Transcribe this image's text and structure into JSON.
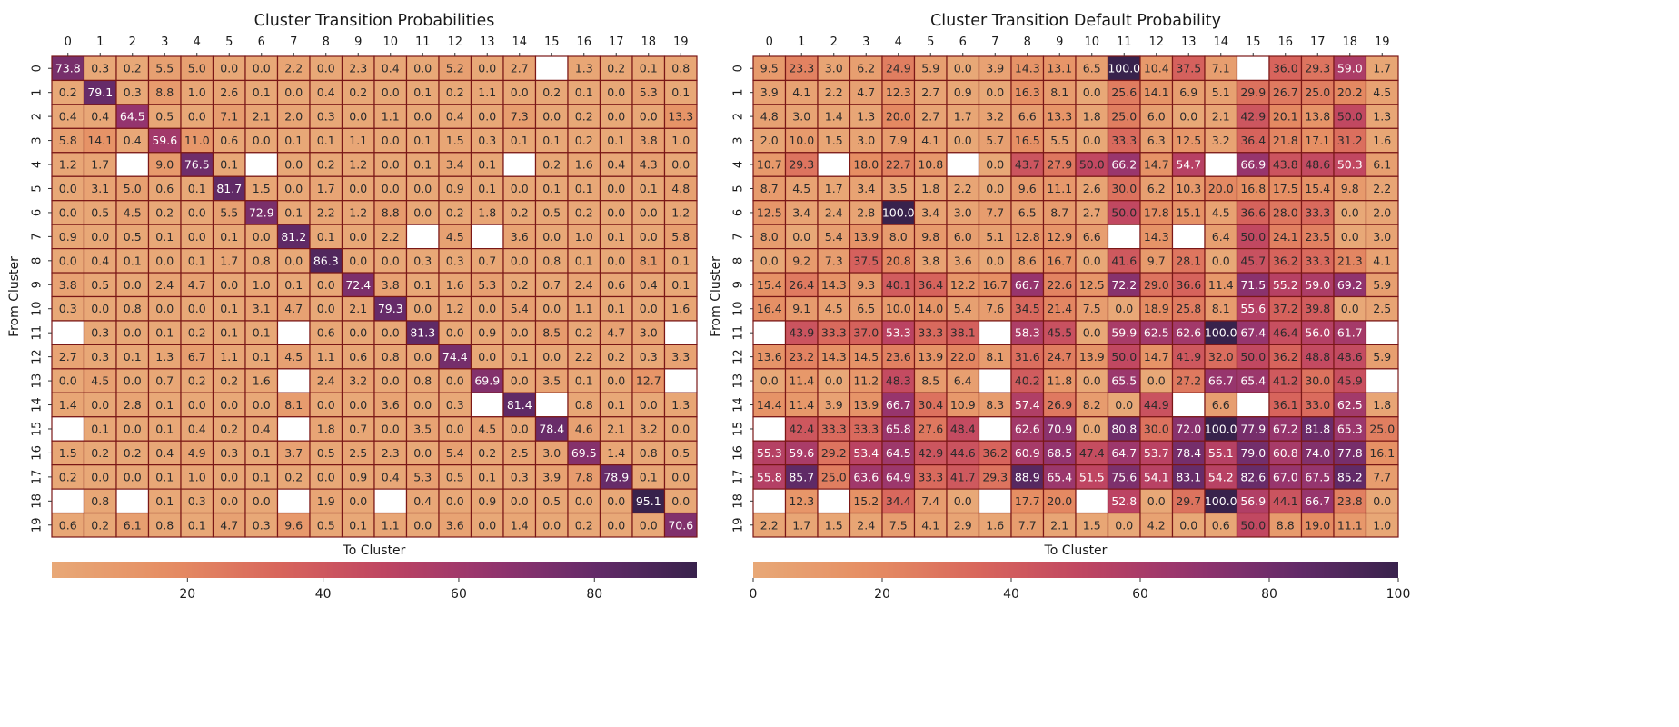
{
  "chart_data": [
    {
      "type": "heatmap",
      "title": "Cluster Transition Probabilities",
      "xlabel": "To Cluster",
      "ylabel": "From Cluster",
      "x_categories": [
        "0",
        "1",
        "2",
        "3",
        "4",
        "5",
        "6",
        "7",
        "8",
        "9",
        "10",
        "11",
        "12",
        "13",
        "14",
        "15",
        "16",
        "17",
        "18",
        "19"
      ],
      "y_categories": [
        "0",
        "1",
        "2",
        "3",
        "4",
        "5",
        "6",
        "7",
        "8",
        "9",
        "10",
        "11",
        "12",
        "13",
        "14",
        "15",
        "16",
        "17",
        "18",
        "19"
      ],
      "colorbar": {
        "range": [
          0.0,
          95.1
        ],
        "ticks": [
          20,
          40,
          60,
          80
        ],
        "orientation": "horizontal"
      },
      "colormap": "flare",
      "grid": true,
      "values": [
        [
          73.8,
          0.3,
          0.2,
          5.5,
          5.0,
          0.0,
          0.0,
          2.2,
          0.0,
          2.3,
          0.4,
          0.0,
          5.2,
          0.0,
          2.7,
          null,
          1.3,
          0.2,
          0.1,
          0.8
        ],
        [
          0.2,
          79.1,
          0.3,
          8.8,
          1.0,
          2.6,
          0.1,
          0.0,
          0.4,
          0.2,
          0.0,
          0.1,
          0.2,
          1.1,
          0.0,
          0.2,
          0.1,
          0.0,
          5.3,
          0.1
        ],
        [
          0.4,
          0.4,
          64.5,
          0.5,
          0.0,
          7.1,
          2.1,
          2.0,
          0.3,
          0.0,
          1.1,
          0.0,
          0.4,
          0.0,
          7.3,
          0.0,
          0.2,
          0.0,
          0.0,
          13.3
        ],
        [
          5.8,
          14.1,
          0.4,
          59.6,
          11.0,
          0.6,
          0.0,
          0.1,
          0.1,
          1.1,
          0.0,
          0.1,
          1.5,
          0.3,
          0.1,
          0.1,
          0.2,
          0.1,
          3.8,
          1.0
        ],
        [
          1.2,
          1.7,
          null,
          9.0,
          76.5,
          0.1,
          null,
          0.0,
          0.2,
          1.2,
          0.0,
          0.1,
          3.4,
          0.1,
          null,
          0.2,
          1.6,
          0.4,
          4.3,
          0.0
        ],
        [
          0.0,
          3.1,
          5.0,
          0.6,
          0.1,
          81.7,
          1.5,
          0.0,
          1.7,
          0.0,
          0.0,
          0.0,
          0.9,
          0.1,
          0.0,
          0.1,
          0.1,
          0.0,
          0.1,
          4.8
        ],
        [
          0.0,
          0.5,
          4.5,
          0.2,
          0.0,
          5.5,
          72.9,
          0.1,
          2.2,
          1.2,
          8.8,
          0.0,
          0.2,
          1.8,
          0.2,
          0.5,
          0.2,
          0.0,
          0.0,
          1.2
        ],
        [
          0.9,
          0.0,
          0.5,
          0.1,
          0.0,
          0.1,
          0.0,
          81.2,
          0.1,
          0.0,
          2.2,
          null,
          4.5,
          null,
          3.6,
          0.0,
          1.0,
          0.1,
          0.0,
          5.8
        ],
        [
          0.0,
          0.4,
          0.1,
          0.0,
          0.1,
          1.7,
          0.8,
          0.0,
          86.3,
          0.0,
          0.0,
          0.3,
          0.3,
          0.7,
          0.0,
          0.8,
          0.1,
          0.0,
          8.1,
          0.1
        ],
        [
          3.8,
          0.5,
          0.0,
          2.4,
          4.7,
          0.0,
          1.0,
          0.1,
          0.0,
          72.4,
          3.8,
          0.1,
          1.6,
          5.3,
          0.2,
          0.7,
          2.4,
          0.6,
          0.4,
          0.1
        ],
        [
          0.3,
          0.0,
          0.8,
          0.0,
          0.0,
          0.1,
          3.1,
          4.7,
          0.0,
          2.1,
          79.3,
          0.0,
          1.2,
          0.0,
          5.4,
          0.0,
          1.1,
          0.1,
          0.0,
          1.6
        ],
        [
          null,
          0.3,
          0.0,
          0.1,
          0.2,
          0.1,
          0.1,
          null,
          0.6,
          0.0,
          0.0,
          81.3,
          0.0,
          0.9,
          0.0,
          8.5,
          0.2,
          4.7,
          3.0,
          null
        ],
        [
          2.7,
          0.3,
          0.1,
          1.3,
          6.7,
          1.1,
          0.1,
          4.5,
          1.1,
          0.6,
          0.8,
          0.0,
          74.4,
          0.0,
          0.1,
          0.0,
          2.2,
          0.2,
          0.3,
          3.3
        ],
        [
          0.0,
          4.5,
          0.0,
          0.7,
          0.2,
          0.2,
          1.6,
          null,
          2.4,
          3.2,
          0.0,
          0.8,
          0.0,
          69.9,
          0.0,
          3.5,
          0.1,
          0.0,
          12.7,
          null
        ],
        [
          1.4,
          0.0,
          2.8,
          0.1,
          0.0,
          0.0,
          0.0,
          8.1,
          0.0,
          0.0,
          3.6,
          0.0,
          0.3,
          null,
          81.4,
          null,
          0.8,
          0.1,
          0.0,
          1.3
        ],
        [
          null,
          0.1,
          0.0,
          0.1,
          0.4,
          0.2,
          0.4,
          null,
          1.8,
          0.7,
          0.0,
          3.5,
          0.0,
          4.5,
          0.0,
          78.4,
          4.6,
          2.1,
          3.2,
          0.0
        ],
        [
          1.5,
          0.2,
          0.2,
          0.4,
          4.9,
          0.3,
          0.1,
          3.7,
          0.5,
          2.5,
          2.3,
          0.0,
          5.4,
          0.2,
          2.5,
          3.0,
          69.5,
          1.4,
          0.8,
          0.5
        ],
        [
          0.2,
          0.0,
          0.0,
          0.1,
          1.0,
          0.0,
          0.1,
          0.2,
          0.0,
          0.9,
          0.4,
          5.3,
          0.5,
          0.1,
          0.3,
          3.9,
          7.8,
          78.9,
          0.1,
          0.0
        ],
        [
          null,
          0.8,
          null,
          0.1,
          0.3,
          0.0,
          0.0,
          null,
          1.9,
          0.0,
          null,
          0.4,
          0.0,
          0.9,
          0.0,
          0.5,
          0.0,
          0.0,
          95.1,
          0.0
        ],
        [
          0.6,
          0.2,
          6.1,
          0.8,
          0.1,
          4.7,
          0.3,
          9.6,
          0.5,
          0.1,
          1.1,
          0.0,
          3.6,
          0.0,
          1.4,
          0.0,
          0.2,
          0.0,
          0.0,
          70.6
        ]
      ]
    },
    {
      "type": "heatmap",
      "title": "Cluster Transition Default Probability",
      "xlabel": "To Cluster",
      "ylabel": "From Cluster",
      "x_categories": [
        "0",
        "1",
        "2",
        "3",
        "4",
        "5",
        "6",
        "7",
        "8",
        "9",
        "10",
        "11",
        "12",
        "13",
        "14",
        "15",
        "16",
        "17",
        "18",
        "19"
      ],
      "y_categories": [
        "0",
        "1",
        "2",
        "3",
        "4",
        "5",
        "6",
        "7",
        "8",
        "9",
        "10",
        "11",
        "12",
        "13",
        "14",
        "15",
        "16",
        "17",
        "18",
        "19"
      ],
      "colorbar": {
        "range": [
          0,
          100
        ],
        "ticks": [
          0,
          20,
          40,
          60,
          80,
          100
        ],
        "orientation": "horizontal"
      },
      "colormap": "flare",
      "grid": true,
      "values": [
        [
          9.5,
          23.3,
          3.0,
          6.2,
          24.9,
          5.9,
          0.0,
          3.9,
          14.3,
          13.1,
          6.5,
          100.0,
          10.4,
          37.5,
          7.1,
          null,
          36.0,
          29.3,
          59.0,
          1.7
        ],
        [
          3.9,
          4.1,
          2.2,
          4.7,
          12.3,
          2.7,
          0.9,
          0.0,
          16.3,
          8.1,
          0.0,
          25.6,
          14.1,
          6.9,
          5.1,
          29.9,
          26.7,
          25.0,
          20.2,
          4.5
        ],
        [
          4.8,
          3.0,
          1.4,
          1.3,
          20.0,
          2.7,
          1.7,
          3.2,
          6.6,
          13.3,
          1.8,
          25.0,
          6.0,
          0.0,
          2.1,
          42.9,
          20.1,
          13.8,
          50.0,
          1.3
        ],
        [
          2.0,
          10.0,
          1.5,
          3.0,
          7.9,
          4.1,
          0.0,
          5.7,
          16.5,
          5.5,
          0.0,
          33.3,
          6.3,
          12.5,
          3.2,
          36.4,
          21.8,
          17.1,
          31.2,
          1.6
        ],
        [
          10.7,
          29.3,
          null,
          18.0,
          22.7,
          10.8,
          null,
          0.0,
          43.7,
          27.9,
          50.0,
          66.2,
          14.7,
          54.7,
          null,
          66.9,
          43.8,
          48.6,
          50.3,
          6.1
        ],
        [
          8.7,
          4.5,
          1.7,
          3.4,
          3.5,
          1.8,
          2.2,
          0.0,
          9.6,
          11.1,
          2.6,
          30.0,
          6.2,
          10.3,
          20.0,
          16.8,
          17.5,
          15.4,
          9.8,
          2.2
        ],
        [
          12.5,
          3.4,
          2.4,
          2.8,
          100.0,
          3.4,
          3.0,
          7.7,
          6.5,
          8.7,
          2.7,
          50.0,
          17.8,
          15.1,
          4.5,
          36.6,
          28.0,
          33.3,
          0.0,
          2.0
        ],
        [
          8.0,
          0.0,
          5.4,
          13.9,
          8.0,
          9.8,
          6.0,
          5.1,
          12.8,
          12.9,
          6.6,
          null,
          14.3,
          null,
          6.4,
          50.0,
          24.1,
          23.5,
          0.0,
          3.0
        ],
        [
          0.0,
          9.2,
          7.3,
          37.5,
          20.8,
          3.8,
          3.6,
          0.0,
          8.6,
          16.7,
          0.0,
          41.6,
          9.7,
          28.1,
          0.0,
          45.7,
          36.2,
          33.3,
          21.3,
          4.1
        ],
        [
          15.4,
          26.4,
          14.3,
          9.3,
          40.1,
          36.4,
          12.2,
          16.7,
          66.7,
          22.6,
          12.5,
          72.2,
          29.0,
          36.6,
          11.4,
          71.5,
          55.2,
          59.0,
          69.2,
          5.9
        ],
        [
          16.4,
          9.1,
          4.5,
          6.5,
          10.0,
          14.0,
          5.4,
          7.6,
          34.5,
          21.4,
          7.5,
          0.0,
          18.9,
          25.8,
          8.1,
          55.6,
          37.2,
          39.8,
          0.0,
          2.5
        ],
        [
          null,
          43.9,
          33.3,
          37.0,
          53.3,
          33.3,
          38.1,
          null,
          58.3,
          45.5,
          0.0,
          59.9,
          62.5,
          62.6,
          100.0,
          67.4,
          46.4,
          56.0,
          61.7,
          null
        ],
        [
          13.6,
          23.2,
          14.3,
          14.5,
          23.6,
          13.9,
          22.0,
          8.1,
          31.6,
          24.7,
          13.9,
          50.0,
          14.7,
          41.9,
          32.0,
          50.0,
          36.2,
          48.8,
          48.6,
          5.9
        ],
        [
          0.0,
          11.4,
          0.0,
          11.2,
          48.3,
          8.5,
          6.4,
          null,
          40.2,
          11.8,
          0.0,
          65.5,
          0.0,
          27.2,
          66.7,
          65.4,
          41.2,
          30.0,
          45.9,
          null
        ],
        [
          14.4,
          11.4,
          3.9,
          13.9,
          66.7,
          30.4,
          10.9,
          8.3,
          57.4,
          26.9,
          8.2,
          0.0,
          44.9,
          null,
          6.6,
          null,
          36.1,
          33.0,
          62.5,
          1.8
        ],
        [
          null,
          42.4,
          33.3,
          33.3,
          65.8,
          27.6,
          48.4,
          null,
          62.6,
          70.9,
          0.0,
          80.8,
          30.0,
          72.0,
          100.0,
          77.9,
          67.2,
          81.8,
          65.3,
          25.0
        ],
        [
          55.3,
          59.6,
          29.2,
          53.4,
          64.5,
          42.9,
          44.6,
          36.2,
          60.9,
          68.5,
          47.4,
          64.7,
          53.7,
          78.4,
          55.1,
          79.0,
          60.8,
          74.0,
          77.8,
          16.1
        ],
        [
          55.8,
          85.7,
          25.0,
          63.6,
          64.9,
          33.3,
          41.7,
          29.3,
          88.9,
          65.4,
          51.5,
          75.6,
          54.1,
          83.1,
          54.2,
          82.6,
          67.0,
          67.5,
          85.2,
          7.7
        ],
        [
          null,
          12.3,
          null,
          15.2,
          34.4,
          7.4,
          0.0,
          null,
          17.7,
          20.0,
          null,
          52.8,
          0.0,
          29.7,
          100.0,
          56.9,
          44.1,
          66.7,
          23.8,
          0.0
        ],
        [
          2.2,
          1.7,
          1.5,
          2.4,
          7.5,
          4.1,
          2.9,
          1.6,
          7.7,
          2.1,
          1.5,
          0.0,
          4.2,
          0.0,
          0.6,
          50.0,
          8.8,
          19.0,
          11.1,
          1.0
        ]
      ]
    }
  ]
}
